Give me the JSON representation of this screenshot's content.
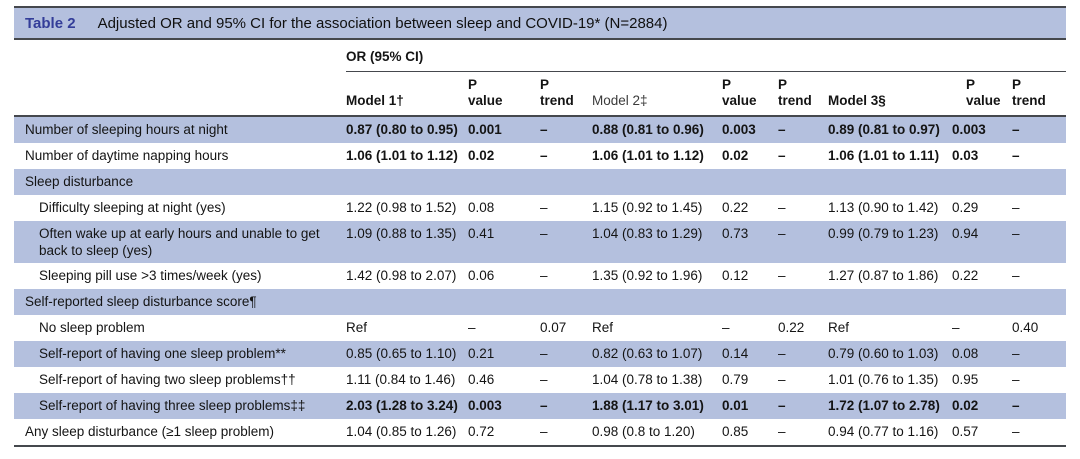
{
  "colors": {
    "stripe": "#b4c0de",
    "rule": "#45484d",
    "table_label": "#333d99"
  },
  "table": {
    "label": "Table 2",
    "title": "Adjusted OR and 95% CI for the association between sleep and COVID-19* (N=2884)",
    "group_header": "OR (95% CI)",
    "columns": [
      {
        "line1": "",
        "line2": "Model 1†"
      },
      {
        "line1": "P",
        "line2": "value"
      },
      {
        "line1": "P",
        "line2": "trend"
      },
      {
        "line1": "",
        "line2": "Model 2‡"
      },
      {
        "line1": "P",
        "line2": "value"
      },
      {
        "line1": "P",
        "line2": "trend"
      },
      {
        "line1": "",
        "line2": "Model 3§"
      },
      {
        "line1": "",
        "line2": "P value"
      },
      {
        "line1": "P",
        "line2": "trend"
      }
    ],
    "rows": [
      {
        "label": "Number of sleeping hours at night",
        "indent": false,
        "bold": true,
        "cells": [
          "0.87 (0.80 to 0.95)",
          "0.001",
          "–",
          "0.88 (0.81 to 0.96)",
          "0.003",
          "–",
          "0.89 (0.81 to 0.97)",
          "0.003",
          "–"
        ]
      },
      {
        "label": "Number of daytime napping hours",
        "indent": false,
        "bold": true,
        "cells": [
          "1.06 (1.01 to 1.12)",
          "0.02",
          "–",
          "1.06 (1.01 to 1.12)",
          "0.02",
          "–",
          "1.06 (1.01 to 1.11)",
          "0.03",
          "–"
        ]
      },
      {
        "label": "Sleep disturbance",
        "indent": false,
        "bold": false,
        "cells": []
      },
      {
        "label": "Difficulty sleeping at night (yes)",
        "indent": true,
        "bold": false,
        "cells": [
          "1.22 (0.98 to 1.52)",
          "0.08",
          "–",
          "1.15 (0.92 to 1.45)",
          "0.22",
          "–",
          "1.13 (0.90 to 1.42)",
          "0.29",
          "–"
        ]
      },
      {
        "label": "Often wake up at early hours and unable to get back to sleep (yes)",
        "indent": true,
        "bold": false,
        "cells": [
          "1.09 (0.88 to 1.35)",
          "0.41",
          "–",
          "1.04 (0.83 to 1.29)",
          "0.73",
          "–",
          "0.99 (0.79 to 1.23)",
          "0.94",
          "–"
        ]
      },
      {
        "label": "Sleeping pill use >3 times/week (yes)",
        "indent": true,
        "bold": false,
        "cells": [
          "1.42 (0.98 to 2.07)",
          "0.06",
          "–",
          "1.35 (0.92 to 1.96)",
          "0.12",
          "–",
          "1.27 (0.87 to 1.86)",
          "0.22",
          "–"
        ]
      },
      {
        "label": "Self-reported sleep disturbance score¶",
        "indent": false,
        "bold": false,
        "cells": []
      },
      {
        "label": "No sleep problem",
        "indent": true,
        "bold": false,
        "cells": [
          "Ref",
          "–",
          "0.07",
          "Ref",
          "–",
          "0.22",
          "Ref",
          "–",
          "0.40"
        ]
      },
      {
        "label": "Self-report of having one sleep problem**",
        "indent": true,
        "bold": false,
        "cells": [
          "0.85 (0.65 to 1.10)",
          "0.21",
          "–",
          "0.82 (0.63 to 1.07)",
          "0.14",
          "–",
          "0.79 (0.60 to 1.03)",
          "0.08",
          "–"
        ]
      },
      {
        "label": "Self-report of having two sleep problems††",
        "indent": true,
        "bold": false,
        "cells": [
          "1.11 (0.84 to 1.46)",
          "0.46",
          "–",
          "1.04 (0.78 to 1.38)",
          "0.79",
          "–",
          "1.01 (0.76 to 1.35)",
          "0.95",
          "–"
        ]
      },
      {
        "label": "Self-report of having three sleep problems‡‡",
        "indent": true,
        "bold": true,
        "cells": [
          "2.03 (1.28 to 3.24)",
          "0.003",
          "–",
          "1.88 (1.17 to 3.01)",
          "0.01",
          "–",
          "1.72 (1.07 to 2.78)",
          "0.02",
          "–"
        ]
      },
      {
        "label": "Any sleep disturbance (≥1 sleep problem)",
        "indent": false,
        "bold": false,
        "cells": [
          "1.04 (0.85 to 1.26)",
          "0.72",
          "–",
          "0.98 (0.8 to 1.20)",
          "0.85",
          "–",
          "0.94 (0.77 to 1.16)",
          "0.57",
          "–"
        ]
      }
    ]
  }
}
